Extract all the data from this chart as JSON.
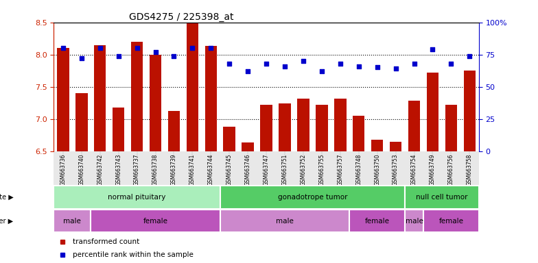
{
  "title": "GDS4275 / 225398_at",
  "samples": [
    "GSM663736",
    "GSM663740",
    "GSM663742",
    "GSM663743",
    "GSM663737",
    "GSM663738",
    "GSM663739",
    "GSM663741",
    "GSM663744",
    "GSM663745",
    "GSM663746",
    "GSM663747",
    "GSM663751",
    "GSM663752",
    "GSM663755",
    "GSM663757",
    "GSM663748",
    "GSM663750",
    "GSM663753",
    "GSM663754",
    "GSM663749",
    "GSM663756",
    "GSM663758"
  ],
  "transformed_count": [
    8.1,
    7.4,
    8.15,
    7.18,
    8.2,
    8.0,
    7.13,
    8.5,
    8.13,
    6.88,
    6.64,
    7.22,
    7.24,
    7.32,
    7.22,
    7.32,
    7.05,
    6.68,
    6.65,
    7.28,
    7.72,
    7.22,
    7.75
  ],
  "percentile_rank": [
    80,
    72,
    80,
    74,
    80,
    77,
    74,
    80,
    80,
    68,
    62,
    68,
    66,
    70,
    62,
    68,
    66,
    65,
    64,
    68,
    79,
    68,
    74
  ],
  "ylim_left": [
    6.5,
    8.5
  ],
  "ylim_right": [
    0,
    100
  ],
  "yticks_left": [
    6.5,
    7.0,
    7.5,
    8.0,
    8.5
  ],
  "yticks_right": [
    0,
    25,
    50,
    75,
    100
  ],
  "bar_color": "#BB1100",
  "dot_color": "#0000CC",
  "bar_width": 0.65,
  "background_color": "#FFFFFF",
  "disease_groups": [
    {
      "label": "normal pituitary",
      "start": 0,
      "end": 8,
      "color": "#AAEEBB"
    },
    {
      "label": "gonadotrope tumor",
      "start": 9,
      "end": 18,
      "color": "#55CC66"
    },
    {
      "label": "null cell tumor",
      "start": 19,
      "end": 22,
      "color": "#55CC66"
    }
  ],
  "gender_groups": [
    {
      "label": "male",
      "start": 0,
      "end": 1,
      "color": "#CC88CC"
    },
    {
      "label": "female",
      "start": 2,
      "end": 8,
      "color": "#BB55BB"
    },
    {
      "label": "male",
      "start": 9,
      "end": 15,
      "color": "#CC88CC"
    },
    {
      "label": "female",
      "start": 16,
      "end": 18,
      "color": "#BB55BB"
    },
    {
      "label": "male",
      "start": 19,
      "end": 19,
      "color": "#CC88CC"
    },
    {
      "label": "female",
      "start": 20,
      "end": 22,
      "color": "#BB55BB"
    }
  ]
}
